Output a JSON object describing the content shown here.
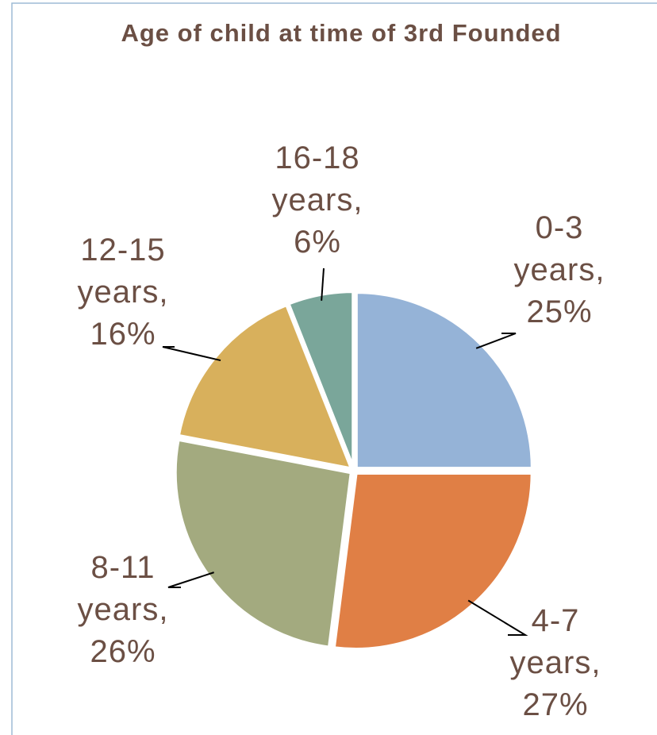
{
  "chart_data": {
    "type": "pie",
    "title": "Age of child at time of 3rd Founded",
    "values": [
      25,
      27,
      26,
      16,
      6
    ],
    "value_labels": [
      "0-3 years, 25%",
      "4-7 years, 27%",
      "8-11 years, 26%",
      "12-15 years, 16%",
      "16-18 years, 6%"
    ],
    "colors": [
      "#95b3d7",
      "#e07f45",
      "#a3aa7f",
      "#d8b05c",
      "#7aa69a"
    ]
  }
}
